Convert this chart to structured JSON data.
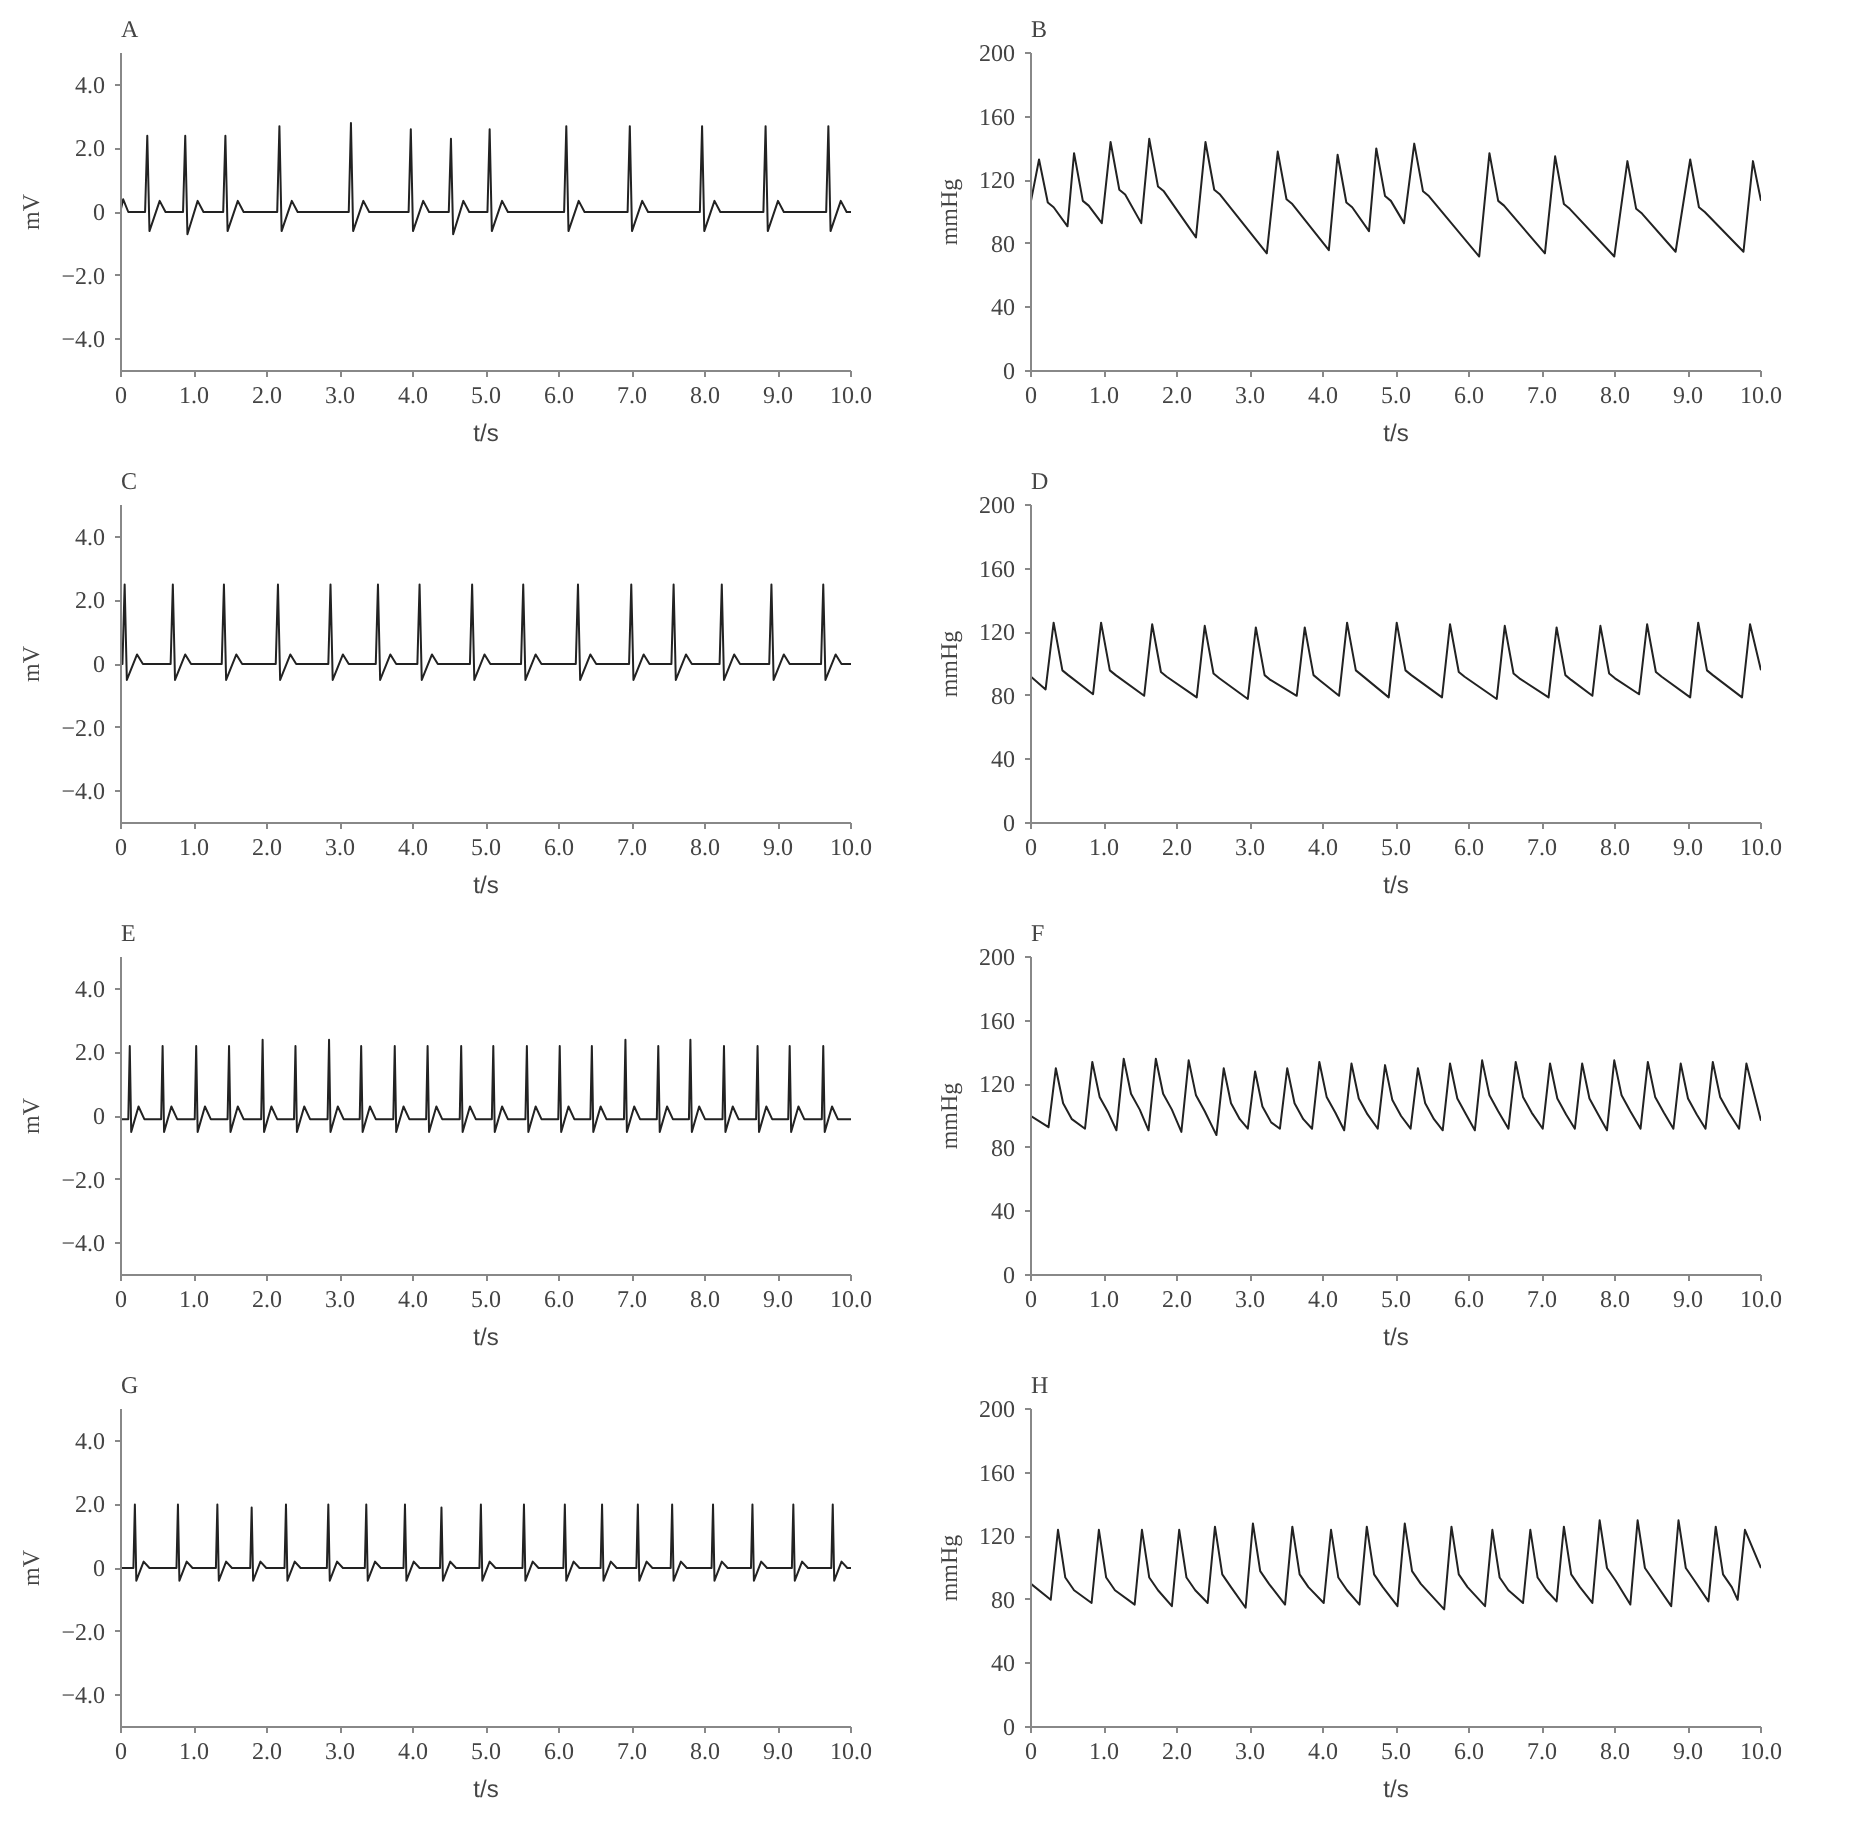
{
  "chart_data": [
    {
      "type": "line",
      "title": "A",
      "xlabel": "t/s",
      "ylabel": "mV",
      "xlim": [
        0,
        10
      ],
      "ylim": [
        -5,
        5
      ],
      "xticks": [
        0,
        {
          "value": 1,
          "label": "1.0"
        },
        {
          "value": 2,
          "label": "2.0"
        },
        {
          "value": 3,
          "label": "3.0"
        },
        {
          "value": 4,
          "label": "4.0"
        },
        {
          "value": 5,
          "label": "5.0"
        },
        {
          "value": 6,
          "label": "6.0"
        },
        {
          "value": 7,
          "label": "7.0"
        },
        {
          "value": 8,
          "label": "8.0"
        },
        {
          "value": 9,
          "label": "9.0"
        },
        {
          "value": 10,
          "label": "10.0"
        }
      ],
      "yticks": [
        {
          "value": 4,
          "label": "4.0"
        },
        {
          "value": 2,
          "label": "2.0"
        },
        0,
        {
          "value": -2,
          "label": "−2.0"
        },
        {
          "value": -4,
          "label": "−4.0"
        }
      ],
      "color": "#222222",
      "x": [
        0,
        0.03,
        0.1,
        0.33,
        0.36,
        0.39,
        0.53,
        0.61,
        0.85,
        0.88,
        0.91,
        1.05,
        1.13,
        1.4,
        1.43,
        1.46,
        1.6,
        1.68,
        2.14,
        2.17,
        2.2,
        2.34,
        2.42,
        3.12,
        3.15,
        3.18,
        3.32,
        3.4,
        3.94,
        3.97,
        4.0,
        4.14,
        4.22,
        4.49,
        4.52,
        4.55,
        4.69,
        4.77,
        5.02,
        5.05,
        5.08,
        5.22,
        5.3,
        6.07,
        6.1,
        6.13,
        6.27,
        6.35,
        6.94,
        6.97,
        7.0,
        7.14,
        7.22,
        7.93,
        7.96,
        7.99,
        8.13,
        8.21,
        8.8,
        8.83,
        8.86,
        9.0,
        9.08,
        9.66,
        9.69,
        9.72,
        9.86,
        9.94,
        10
      ],
      "values": [
        0.1,
        0.4,
        0.0,
        0,
        2.4,
        -0.6,
        0.35,
        0,
        0,
        2.4,
        -0.7,
        0.35,
        0,
        0,
        2.4,
        -0.6,
        0.35,
        0,
        0,
        2.7,
        -0.6,
        0.35,
        0,
        0,
        2.8,
        -0.6,
        0.35,
        0,
        0,
        2.6,
        -0.6,
        0.35,
        0,
        0,
        2.3,
        -0.7,
        0.35,
        0,
        0,
        2.6,
        -0.6,
        0.35,
        0,
        0,
        2.7,
        -0.6,
        0.35,
        0,
        0,
        2.7,
        -0.6,
        0.35,
        0,
        0,
        2.7,
        -0.6,
        0.35,
        0,
        0,
        2.7,
        -0.6,
        0.35,
        0,
        0,
        2.7,
        -0.6,
        0.35,
        0,
        0
      ]
    },
    {
      "type": "line",
      "title": "B",
      "xlabel": "t/s",
      "ylabel": "mmHg",
      "xlim": [
        0,
        10
      ],
      "ylim": [
        0,
        200
      ],
      "xticks": [
        0,
        {
          "value": 1,
          "label": "1.0"
        },
        {
          "value": 2,
          "label": "2.0"
        },
        {
          "value": 3,
          "label": "3.0"
        },
        {
          "value": 4,
          "label": "4.0"
        },
        {
          "value": 5,
          "label": "5.0"
        },
        {
          "value": 6,
          "label": "6.0"
        },
        {
          "value": 7,
          "label": "7.0"
        },
        {
          "value": 8,
          "label": "8.0"
        },
        {
          "value": 9,
          "label": "9.0"
        },
        {
          "value": 10,
          "label": "10.0"
        }
      ],
      "yticks": [
        0,
        40,
        80,
        120,
        160,
        200
      ],
      "color": "#222222",
      "x": [
        0,
        0.11,
        0.23,
        0.31,
        0.5,
        0.59,
        0.71,
        0.79,
        0.97,
        1.09,
        1.21,
        1.29,
        1.51,
        1.62,
        1.74,
        1.82,
        2.26,
        2.39,
        2.51,
        2.59,
        3.23,
        3.38,
        3.5,
        3.58,
        4.08,
        4.2,
        4.32,
        4.4,
        4.63,
        4.73,
        4.85,
        4.93,
        5.11,
        5.25,
        5.37,
        5.45,
        6.14,
        6.28,
        6.4,
        6.48,
        7.04,
        7.18,
        7.3,
        7.38,
        7.99,
        8.17,
        8.29,
        8.37,
        8.83,
        9.03,
        9.15,
        9.23,
        9.76,
        9.89,
        10
      ],
      "values": [
        107,
        133,
        106,
        103,
        91,
        137,
        107,
        104,
        93,
        144,
        114,
        111,
        93,
        146,
        116,
        113,
        84,
        144,
        114,
        111,
        74,
        138,
        108,
        105,
        76,
        136,
        106,
        103,
        88,
        140,
        110,
        107,
        93,
        143,
        113,
        110,
        72,
        137,
        107,
        104,
        74,
        135,
        105,
        102,
        72,
        132,
        102,
        99,
        75,
        133,
        103,
        100,
        75,
        132,
        107
      ]
    },
    {
      "type": "line",
      "title": "C",
      "xlabel": "t/s",
      "ylabel": "mV",
      "xlim": [
        0,
        10
      ],
      "ylim": [
        -5,
        5
      ],
      "xticks": [
        0,
        {
          "value": 1,
          "label": "1.0"
        },
        {
          "value": 2,
          "label": "2.0"
        },
        {
          "value": 3,
          "label": "3.0"
        },
        {
          "value": 4,
          "label": "4.0"
        },
        {
          "value": 5,
          "label": "5.0"
        },
        {
          "value": 6,
          "label": "6.0"
        },
        {
          "value": 7,
          "label": "7.0"
        },
        {
          "value": 8,
          "label": "8.0"
        },
        {
          "value": 9,
          "label": "9.0"
        },
        {
          "value": 10,
          "label": "10.0"
        }
      ],
      "yticks": [
        {
          "value": 4,
          "label": "4.0"
        },
        {
          "value": 2,
          "label": "2.0"
        },
        0,
        {
          "value": -2,
          "label": "−2.0"
        },
        {
          "value": -4,
          "label": "−4.0"
        }
      ],
      "color": "#222222",
      "x": [
        0,
        0.02,
        0.05,
        0.08,
        0.22,
        0.3,
        0.68,
        0.71,
        0.74,
        0.88,
        0.96,
        1.38,
        1.41,
        1.44,
        1.58,
        1.66,
        2.12,
        2.15,
        2.18,
        2.32,
        2.4,
        2.84,
        2.87,
        2.9,
        3.04,
        3.12,
        3.49,
        3.52,
        3.55,
        3.69,
        3.77,
        4.06,
        4.09,
        4.12,
        4.26,
        4.34,
        4.78,
        4.81,
        4.84,
        4.98,
        5.06,
        5.48,
        5.51,
        5.54,
        5.68,
        5.76,
        6.23,
        6.26,
        6.29,
        6.43,
        6.51,
        6.96,
        6.99,
        7.02,
        7.16,
        7.24,
        7.54,
        7.57,
        7.6,
        7.74,
        7.82,
        8.2,
        8.23,
        8.26,
        8.4,
        8.48,
        8.88,
        8.91,
        8.94,
        9.08,
        9.16,
        9.59,
        9.62,
        9.65,
        9.79,
        9.87,
        10
      ],
      "values": [
        0,
        0,
        2.5,
        -0.5,
        0.3,
        0,
        0,
        2.5,
        -0.5,
        0.3,
        0,
        0,
        2.5,
        -0.5,
        0.3,
        0,
        0,
        2.5,
        -0.5,
        0.3,
        0,
        0,
        2.5,
        -0.5,
        0.3,
        0,
        0,
        2.5,
        -0.5,
        0.3,
        0,
        0,
        2.5,
        -0.5,
        0.3,
        0,
        0,
        2.5,
        -0.5,
        0.3,
        0,
        0,
        2.5,
        -0.5,
        0.3,
        0,
        0,
        2.5,
        -0.5,
        0.3,
        0,
        0,
        2.5,
        -0.5,
        0.3,
        0,
        0,
        2.5,
        -0.5,
        0.3,
        0,
        0,
        2.5,
        -0.5,
        0.3,
        0,
        0,
        2.5,
        -0.5,
        0.3,
        0,
        0,
        2.5,
        -0.5,
        0.3,
        0,
        0
      ]
    },
    {
      "type": "line",
      "title": "D",
      "xlabel": "t/s",
      "ylabel": "mmHg",
      "xlim": [
        0,
        10
      ],
      "ylim": [
        0,
        200
      ],
      "xticks": [
        0,
        {
          "value": 1,
          "label": "1.0"
        },
        {
          "value": 2,
          "label": "2.0"
        },
        {
          "value": 3,
          "label": "3.0"
        },
        {
          "value": 4,
          "label": "4.0"
        },
        {
          "value": 5,
          "label": "5.0"
        },
        {
          "value": 6,
          "label": "6.0"
        },
        {
          "value": 7,
          "label": "7.0"
        },
        {
          "value": 8,
          "label": "8.0"
        },
        {
          "value": 9,
          "label": "9.0"
        },
        {
          "value": 10,
          "label": "10.0"
        }
      ],
      "yticks": [
        0,
        40,
        80,
        120,
        160,
        200
      ],
      "color": "#222222",
      "x": [
        0,
        0.2,
        0.31,
        0.43,
        0.51,
        0.85,
        0.96,
        1.08,
        1.16,
        1.55,
        1.66,
        1.78,
        1.86,
        2.27,
        2.38,
        2.5,
        2.58,
        2.97,
        3.08,
        3.2,
        3.28,
        3.64,
        3.75,
        3.87,
        3.95,
        4.22,
        4.33,
        4.45,
        4.53,
        4.9,
        5.01,
        5.13,
        5.21,
        5.63,
        5.74,
        5.86,
        5.94,
        6.38,
        6.49,
        6.61,
        6.69,
        7.09,
        7.2,
        7.32,
        7.4,
        7.69,
        7.8,
        7.92,
        8.0,
        8.33,
        8.44,
        8.56,
        8.64,
        9.03,
        9.14,
        9.26,
        9.34,
        9.74,
        9.85,
        10
      ],
      "values": [
        92,
        84,
        126,
        96,
        93,
        81,
        126,
        96,
        93,
        80,
        125,
        95,
        92,
        79,
        124,
        94,
        91,
        78,
        123,
        93,
        90,
        80,
        123,
        93,
        90,
        80,
        126,
        96,
        93,
        79,
        126,
        96,
        93,
        79,
        125,
        95,
        92,
        78,
        124,
        94,
        91,
        79,
        123,
        93,
        90,
        80,
        124,
        94,
        91,
        81,
        125,
        95,
        92,
        79,
        126,
        96,
        93,
        79,
        125,
        96
      ]
    },
    {
      "type": "line",
      "title": "E",
      "xlabel": "t/s",
      "ylabel": "mV",
      "xlim": [
        0,
        10
      ],
      "ylim": [
        -5,
        5
      ],
      "xticks": [
        0,
        {
          "value": 1,
          "label": "1.0"
        },
        {
          "value": 2,
          "label": "2.0"
        },
        {
          "value": 3,
          "label": "3.0"
        },
        {
          "value": 4,
          "label": "4.0"
        },
        {
          "value": 5,
          "label": "5.0"
        },
        {
          "value": 6,
          "label": "6.0"
        },
        {
          "value": 7,
          "label": "7.0"
        },
        {
          "value": 8,
          "label": "8.0"
        },
        {
          "value": 9,
          "label": "9.0"
        },
        {
          "value": 10,
          "label": "10.0"
        }
      ],
      "yticks": [
        {
          "value": 4,
          "label": "4.0"
        },
        {
          "value": 2,
          "label": "2.0"
        },
        0,
        {
          "value": -2,
          "label": "−2.0"
        },
        {
          "value": -4,
          "label": "−4.0"
        }
      ],
      "color": "#222222",
      "x": [
        0,
        0.1,
        0.12,
        0.14,
        0.24,
        0.32,
        0.55,
        0.57,
        0.59,
        0.69,
        0.77,
        1.01,
        1.03,
        1.05,
        1.15,
        1.23,
        1.46,
        1.48,
        1.5,
        1.6,
        1.68,
        1.92,
        1.94,
        1.96,
        2.06,
        2.14,
        2.37,
        2.39,
        2.41,
        2.51,
        2.59,
        2.83,
        2.85,
        2.87,
        2.97,
        3.05,
        3.27,
        3.29,
        3.31,
        3.41,
        3.49,
        3.73,
        3.75,
        3.77,
        3.87,
        3.95,
        4.18,
        4.2,
        4.22,
        4.32,
        4.4,
        4.64,
        4.66,
        4.68,
        4.78,
        4.86,
        5.08,
        5.1,
        5.12,
        5.22,
        5.3,
        5.54,
        5.56,
        5.58,
        5.68,
        5.76,
        5.99,
        6.01,
        6.03,
        6.13,
        6.21,
        6.43,
        6.45,
        6.47,
        6.57,
        6.65,
        6.89,
        6.91,
        6.93,
        7.03,
        7.11,
        7.34,
        7.36,
        7.38,
        7.48,
        7.56,
        7.78,
        7.8,
        7.82,
        7.92,
        8.0,
        8.24,
        8.26,
        8.28,
        8.38,
        8.46,
        8.7,
        8.72,
        8.74,
        8.84,
        8.92,
        9.14,
        9.16,
        9.18,
        9.28,
        9.36,
        9.6,
        9.62,
        9.64,
        9.74,
        9.82,
        10
      ],
      "values": [
        -0.1,
        -0.1,
        2.2,
        -0.5,
        0.3,
        -0.1,
        -0.1,
        2.2,
        -0.5,
        0.3,
        -0.1,
        -0.1,
        2.2,
        -0.5,
        0.3,
        -0.1,
        -0.1,
        2.2,
        -0.5,
        0.3,
        -0.1,
        -0.1,
        2.4,
        -0.5,
        0.3,
        -0.1,
        -0.1,
        2.2,
        -0.5,
        0.3,
        -0.1,
        -0.1,
        2.4,
        -0.5,
        0.3,
        -0.1,
        -0.1,
        2.2,
        -0.5,
        0.3,
        -0.1,
        -0.1,
        2.2,
        -0.5,
        0.3,
        -0.1,
        -0.1,
        2.2,
        -0.5,
        0.3,
        -0.1,
        -0.1,
        2.2,
        -0.5,
        0.3,
        -0.1,
        -0.1,
        2.2,
        -0.5,
        0.3,
        -0.1,
        -0.1,
        2.2,
        -0.5,
        0.3,
        -0.1,
        -0.1,
        2.2,
        -0.5,
        0.3,
        -0.1,
        -0.1,
        2.2,
        -0.5,
        0.3,
        -0.1,
        -0.1,
        2.4,
        -0.5,
        0.3,
        -0.1,
        -0.1,
        2.2,
        -0.5,
        0.3,
        -0.1,
        -0.1,
        2.4,
        -0.5,
        0.3,
        -0.1,
        -0.1,
        2.2,
        -0.5,
        0.3,
        -0.1,
        -0.1,
        2.2,
        -0.5,
        0.3,
        -0.1,
        -0.1,
        2.2,
        -0.5,
        0.3,
        -0.1,
        -0.1,
        2.2,
        -0.5,
        0.3,
        -0.1,
        -0.1
      ]
    },
    {
      "type": "line",
      "title": "F",
      "xlabel": "t/s",
      "ylabel": "mmHg",
      "xlim": [
        0,
        10
      ],
      "ylim": [
        0,
        200
      ],
      "xticks": [
        0,
        {
          "value": 1,
          "label": "1.0"
        },
        {
          "value": 2,
          "label": "2.0"
        },
        {
          "value": 3,
          "label": "3.0"
        },
        {
          "value": 4,
          "label": "4.0"
        },
        {
          "value": 5,
          "label": "5.0"
        },
        {
          "value": 6,
          "label": "6.0"
        },
        {
          "value": 7,
          "label": "7.0"
        },
        {
          "value": 8,
          "label": "8.0"
        },
        {
          "value": 9,
          "label": "9.0"
        },
        {
          "value": 10,
          "label": "10.0"
        }
      ],
      "yticks": [
        0,
        40,
        80,
        120,
        160,
        200
      ],
      "color": "#222222",
      "x": [
        0,
        0.24,
        0.34,
        0.44,
        0.56,
        0.74,
        0.84,
        0.94,
        1.06,
        1.17,
        1.27,
        1.37,
        1.49,
        1.61,
        1.71,
        1.81,
        1.93,
        2.06,
        2.16,
        2.26,
        2.38,
        2.54,
        2.64,
        2.74,
        2.86,
        2.97,
        3.07,
        3.17,
        3.29,
        3.41,
        3.51,
        3.61,
        3.73,
        3.85,
        3.95,
        4.05,
        4.17,
        4.29,
        4.39,
        4.49,
        4.61,
        4.75,
        4.85,
        4.95,
        5.07,
        5.2,
        5.3,
        5.4,
        5.52,
        5.64,
        5.74,
        5.84,
        5.96,
        6.08,
        6.18,
        6.28,
        6.4,
        6.54,
        6.64,
        6.74,
        6.86,
        7.01,
        7.11,
        7.21,
        7.33,
        7.45,
        7.55,
        7.65,
        7.77,
        7.89,
        7.99,
        8.09,
        8.21,
        8.35,
        8.45,
        8.55,
        8.67,
        8.8,
        8.9,
        9.0,
        9.12,
        9.24,
        9.34,
        9.44,
        9.56,
        9.7,
        9.8,
        10
      ],
      "values": [
        100,
        93,
        130,
        108,
        98,
        92,
        134,
        112,
        102,
        91,
        136,
        114,
        104,
        91,
        136,
        114,
        104,
        90,
        135,
        113,
        103,
        88,
        130,
        108,
        98,
        92,
        128,
        106,
        96,
        92,
        130,
        108,
        98,
        92,
        134,
        112,
        102,
        91,
        133,
        111,
        101,
        92,
        132,
        110,
        100,
        92,
        130,
        108,
        98,
        91,
        133,
        111,
        101,
        91,
        135,
        113,
        103,
        92,
        134,
        112,
        102,
        92,
        133,
        111,
        101,
        92,
        133,
        111,
        101,
        91,
        135,
        113,
        103,
        92,
        134,
        112,
        102,
        92,
        133,
        111,
        101,
        92,
        134,
        112,
        102,
        92,
        133,
        97
      ]
    },
    {
      "type": "line",
      "title": "G",
      "xlabel": "t/s",
      "ylabel": "mV",
      "xlim": [
        0,
        10
      ],
      "ylim": [
        -5,
        5
      ],
      "xticks": [
        0,
        {
          "value": 1,
          "label": "1.0"
        },
        {
          "value": 2,
          "label": "2.0"
        },
        {
          "value": 3,
          "label": "3.0"
        },
        {
          "value": 4,
          "label": "4.0"
        },
        {
          "value": 5,
          "label": "5.0"
        },
        {
          "value": 6,
          "label": "6.0"
        },
        {
          "value": 7,
          "label": "7.0"
        },
        {
          "value": 8,
          "label": "8.0"
        },
        {
          "value": 9,
          "label": "9.0"
        },
        {
          "value": 10,
          "label": "10.0"
        }
      ],
      "yticks": [
        {
          "value": 4,
          "label": "4.0"
        },
        {
          "value": 2,
          "label": "2.0"
        },
        0,
        {
          "value": -2,
          "label": "−2.0"
        },
        {
          "value": -4,
          "label": "−4.0"
        }
      ],
      "color": "#222222",
      "x": [
        0,
        0.17,
        0.19,
        0.21,
        0.31,
        0.39,
        0.76,
        0.78,
        0.8,
        0.9,
        0.98,
        1.3,
        1.32,
        1.34,
        1.44,
        1.52,
        1.77,
        1.79,
        1.81,
        1.91,
        1.99,
        2.24,
        2.26,
        2.28,
        2.38,
        2.46,
        2.82,
        2.84,
        2.86,
        2.96,
        3.04,
        3.34,
        3.36,
        3.38,
        3.48,
        3.56,
        3.87,
        3.89,
        3.91,
        4.01,
        4.09,
        4.37,
        4.39,
        4.41,
        4.51,
        4.59,
        4.91,
        4.93,
        4.95,
        5.05,
        5.13,
        5.5,
        5.52,
        5.54,
        5.64,
        5.72,
        6.06,
        6.08,
        6.1,
        6.2,
        6.28,
        6.57,
        6.59,
        6.61,
        6.71,
        6.79,
        7.06,
        7.08,
        7.1,
        7.2,
        7.28,
        7.53,
        7.55,
        7.57,
        7.67,
        7.75,
        8.09,
        8.11,
        8.13,
        8.23,
        8.31,
        8.63,
        8.65,
        8.67,
        8.77,
        8.85,
        9.19,
        9.21,
        9.23,
        9.33,
        9.41,
        9.73,
        9.75,
        9.77,
        9.87,
        9.95,
        10
      ],
      "values": [
        0,
        0,
        2.0,
        -0.4,
        0.2,
        0,
        0,
        2.0,
        -0.4,
        0.2,
        0,
        0,
        2.0,
        -0.4,
        0.2,
        0,
        0,
        1.9,
        -0.4,
        0.2,
        0,
        0,
        2.0,
        -0.4,
        0.2,
        0,
        0,
        2.0,
        -0.4,
        0.2,
        0,
        0,
        2.0,
        -0.4,
        0.2,
        0,
        0,
        2.0,
        -0.4,
        0.2,
        0,
        0,
        1.9,
        -0.4,
        0.2,
        0,
        0,
        2.0,
        -0.4,
        0.2,
        0,
        0,
        2.0,
        -0.4,
        0.2,
        0,
        0,
        2.0,
        -0.4,
        0.2,
        0,
        0,
        2.0,
        -0.4,
        0.2,
        0,
        0,
        2.0,
        -0.4,
        0.2,
        0,
        0,
        2.0,
        -0.4,
        0.2,
        0,
        0,
        2.0,
        -0.4,
        0.2,
        0,
        0,
        2.0,
        -0.4,
        0.2,
        0,
        0,
        2.0,
        -0.4,
        0.2,
        0,
        0,
        2.0,
        -0.4,
        0.2,
        0,
        0
      ]
    },
    {
      "type": "line",
      "title": "H",
      "xlabel": "t/s",
      "ylabel": "mmHg",
      "xlim": [
        0,
        10
      ],
      "ylim": [
        0,
        200
      ],
      "xticks": [
        0,
        {
          "value": 1,
          "label": "1.0"
        },
        {
          "value": 2,
          "label": "2.0"
        },
        {
          "value": 3,
          "label": "3.0"
        },
        {
          "value": 4,
          "label": "4.0"
        },
        {
          "value": 5,
          "label": "5.0"
        },
        {
          "value": 6,
          "label": "6.0"
        },
        {
          "value": 7,
          "label": "7.0"
        },
        {
          "value": 8,
          "label": "8.0"
        },
        {
          "value": 9,
          "label": "9.0"
        },
        {
          "value": 10,
          "label": "10.0"
        }
      ],
      "yticks": [
        0,
        40,
        80,
        120,
        160,
        200
      ],
      "color": "#222222",
      "x": [
        0,
        0.27,
        0.37,
        0.47,
        0.59,
        0.83,
        0.93,
        1.03,
        1.15,
        1.42,
        1.52,
        1.62,
        1.74,
        1.93,
        2.03,
        2.13,
        2.25,
        2.42,
        2.52,
        2.62,
        2.74,
        2.94,
        3.04,
        3.14,
        3.26,
        3.48,
        3.58,
        3.68,
        3.8,
        4.01,
        4.11,
        4.21,
        4.33,
        4.5,
        4.6,
        4.7,
        4.82,
        5.02,
        5.12,
        5.22,
        5.34,
        5.66,
        5.76,
        5.86,
        5.98,
        6.22,
        6.32,
        6.42,
        6.54,
        6.74,
        6.84,
        6.94,
        7.06,
        7.2,
        7.3,
        7.4,
        7.52,
        7.69,
        7.79,
        7.89,
        8.01,
        8.21,
        8.31,
        8.41,
        8.53,
        8.77,
        8.87,
        8.97,
        9.09,
        9.28,
        9.38,
        9.48,
        9.6,
        9.68,
        9.78,
        10
      ],
      "values": [
        90,
        80,
        124,
        94,
        86,
        78,
        124,
        94,
        86,
        77,
        124,
        94,
        86,
        76,
        124,
        94,
        86,
        78,
        126,
        96,
        88,
        75,
        128,
        98,
        90,
        77,
        126,
        96,
        88,
        78,
        124,
        94,
        86,
        77,
        126,
        96,
        88,
        76,
        128,
        98,
        90,
        74,
        126,
        96,
        88,
        76,
        124,
        94,
        86,
        78,
        124,
        94,
        86,
        79,
        126,
        96,
        88,
        78,
        130,
        100,
        92,
        77,
        130,
        100,
        92,
        76,
        130,
        100,
        92,
        79,
        126,
        96,
        88,
        80,
        124,
        100
      ]
    }
  ]
}
